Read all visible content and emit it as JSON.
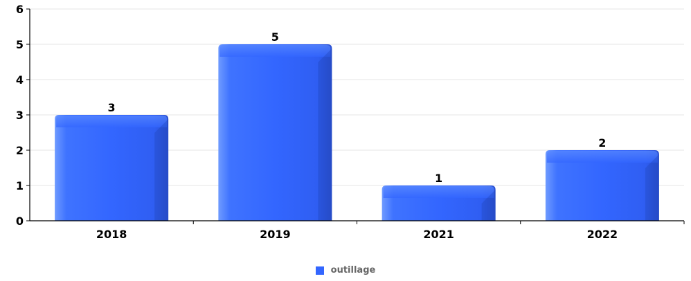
{
  "chart_data": {
    "type": "bar",
    "categories": [
      "2018",
      "2019",
      "2021",
      "2022"
    ],
    "series": [
      {
        "name": "outillage",
        "values": [
          3,
          5,
          1,
          2
        ],
        "color": "#3366ff"
      }
    ],
    "ylim": [
      0,
      6
    ],
    "yticks": [
      "0",
      "1",
      "2",
      "3",
      "4",
      "5",
      "6"
    ],
    "grid": true,
    "legend_position": "bottom",
    "data_labels": true
  },
  "legend": {
    "label": "outillage"
  }
}
